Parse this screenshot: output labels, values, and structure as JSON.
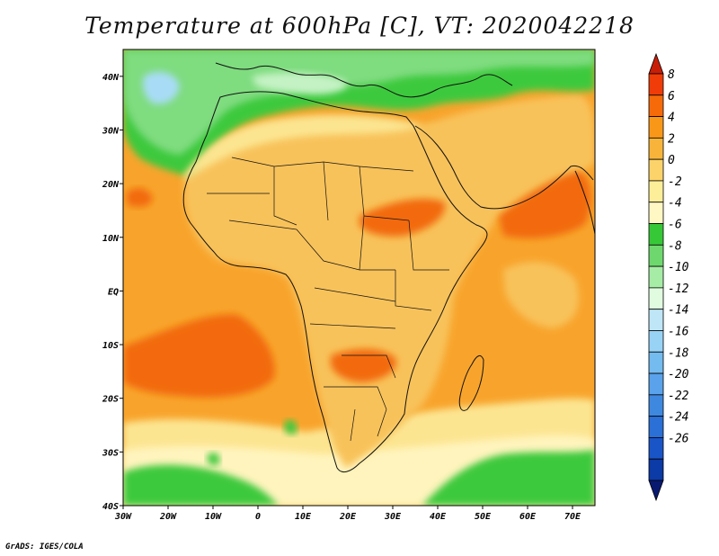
{
  "title": "Temperature at 600hPa [C], VT: 2020042218",
  "credit": "GrADS: IGES/COLA",
  "map": {
    "lon_range": [
      -30,
      75
    ],
    "lat_range": [
      -40,
      45
    ],
    "x_ticks": [
      {
        "lon": -30,
        "label": "30W"
      },
      {
        "lon": -20,
        "label": "20W"
      },
      {
        "lon": -10,
        "label": "10W"
      },
      {
        "lon": 0,
        "label": "0"
      },
      {
        "lon": 10,
        "label": "10E"
      },
      {
        "lon": 20,
        "label": "20E"
      },
      {
        "lon": 30,
        "label": "30E"
      },
      {
        "lon": 40,
        "label": "40E"
      },
      {
        "lon": 50,
        "label": "50E"
      },
      {
        "lon": 60,
        "label": "60E"
      },
      {
        "lon": 70,
        "label": "70E"
      }
    ],
    "y_ticks": [
      {
        "lat": 40,
        "label": "40N"
      },
      {
        "lat": 30,
        "label": "30N"
      },
      {
        "lat": 20,
        "label": "20N"
      },
      {
        "lat": 10,
        "label": "10N"
      },
      {
        "lat": 0,
        "label": "EQ"
      },
      {
        "lat": -10,
        "label": "10S"
      },
      {
        "lat": -20,
        "label": "20S"
      },
      {
        "lat": -30,
        "label": "30S"
      },
      {
        "lat": -40,
        "label": "40S"
      }
    ]
  },
  "colorbar": {
    "labels": [
      "8",
      "6",
      "4",
      "2",
      "0",
      "-2",
      "-4",
      "-6",
      "-8",
      "-10",
      "-12",
      "-14",
      "-16",
      "-18",
      "-20",
      "-22",
      "-24",
      "-26"
    ],
    "colors": [
      "#c81e08",
      "#f03c08",
      "#f66a0a",
      "#f99818",
      "#f8b43a",
      "#fbd36a",
      "#fdee9a",
      "#fff7c4",
      "#37c837",
      "#6ed86e",
      "#a6eca6",
      "#e0fbe0",
      "#bfe6f6",
      "#98d3f6",
      "#74bbf0",
      "#5aa3ec",
      "#3f88e0",
      "#2a70d6",
      "#1a55c8",
      "#0c3aa6",
      "#081a70"
    ]
  },
  "fill_colors": {
    "ocean_warm": "#f8a42c",
    "ocean_hot": "#f26a10",
    "land_base": "#f8c25a",
    "land_warm": "#f7a634",
    "pale_yellow": "#fce591",
    "light_yellow": "#fff4bd",
    "green": "#3ec93e",
    "light_green": "#7fdc7f",
    "pale_green": "#c5f2c5",
    "light_blue": "#a8dcf6"
  }
}
